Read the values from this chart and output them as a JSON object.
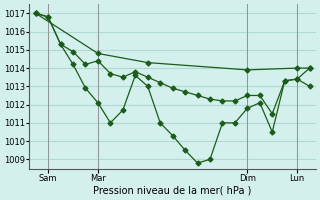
{
  "background_color": "#d4f0ec",
  "grid_color": "#b0d8d4",
  "line_color": "#1a5c1a",
  "marker_color": "#1a5c1a",
  "xlabel": "Pression niveau de la mer( hPa )",
  "ylim": [
    1008.5,
    1017.5
  ],
  "yticks": [
    1009,
    1010,
    1011,
    1012,
    1013,
    1014,
    1015,
    1016,
    1017
  ],
  "xtick_positions": [
    1,
    5,
    17,
    21
  ],
  "xtick_labels": [
    "Sam",
    "Mar",
    "Dim",
    "Lun"
  ],
  "xtick_vline_positions": [
    1,
    5,
    17,
    21
  ],
  "series1_x": [
    0,
    1,
    2,
    3,
    4,
    5,
    6,
    7,
    8,
    9,
    10,
    11,
    12,
    13,
    14,
    15,
    16,
    17,
    18,
    19,
    20,
    21,
    22
  ],
  "series1_y": [
    1017.0,
    1016.8,
    1015.3,
    1014.2,
    1012.9,
    1012.1,
    1011.0,
    1011.7,
    1013.6,
    1013.0,
    1011.0,
    1010.3,
    1009.5,
    1008.8,
    1009.0,
    1011.0,
    1011.0,
    1011.8,
    1012.1,
    1010.5,
    1013.3,
    1013.4,
    1013.0
  ],
  "series2_x": [
    0,
    5,
    9,
    17,
    21,
    22
  ],
  "series2_y": [
    1017.0,
    1014.8,
    1014.3,
    1013.9,
    1014.0,
    1014.0
  ],
  "series3_x": [
    0,
    1,
    2,
    3,
    4,
    5,
    6,
    7,
    8,
    9,
    10,
    11,
    12,
    13,
    14,
    15,
    16,
    17,
    18,
    19,
    20,
    21,
    22
  ],
  "series3_y": [
    1017.0,
    1016.8,
    1015.3,
    1014.9,
    1014.2,
    1014.4,
    1013.7,
    1013.5,
    1013.8,
    1013.5,
    1013.2,
    1012.9,
    1012.7,
    1012.5,
    1012.3,
    1012.2,
    1012.2,
    1012.5,
    1012.5,
    1011.5,
    1013.3,
    1013.4,
    1014.0
  ]
}
